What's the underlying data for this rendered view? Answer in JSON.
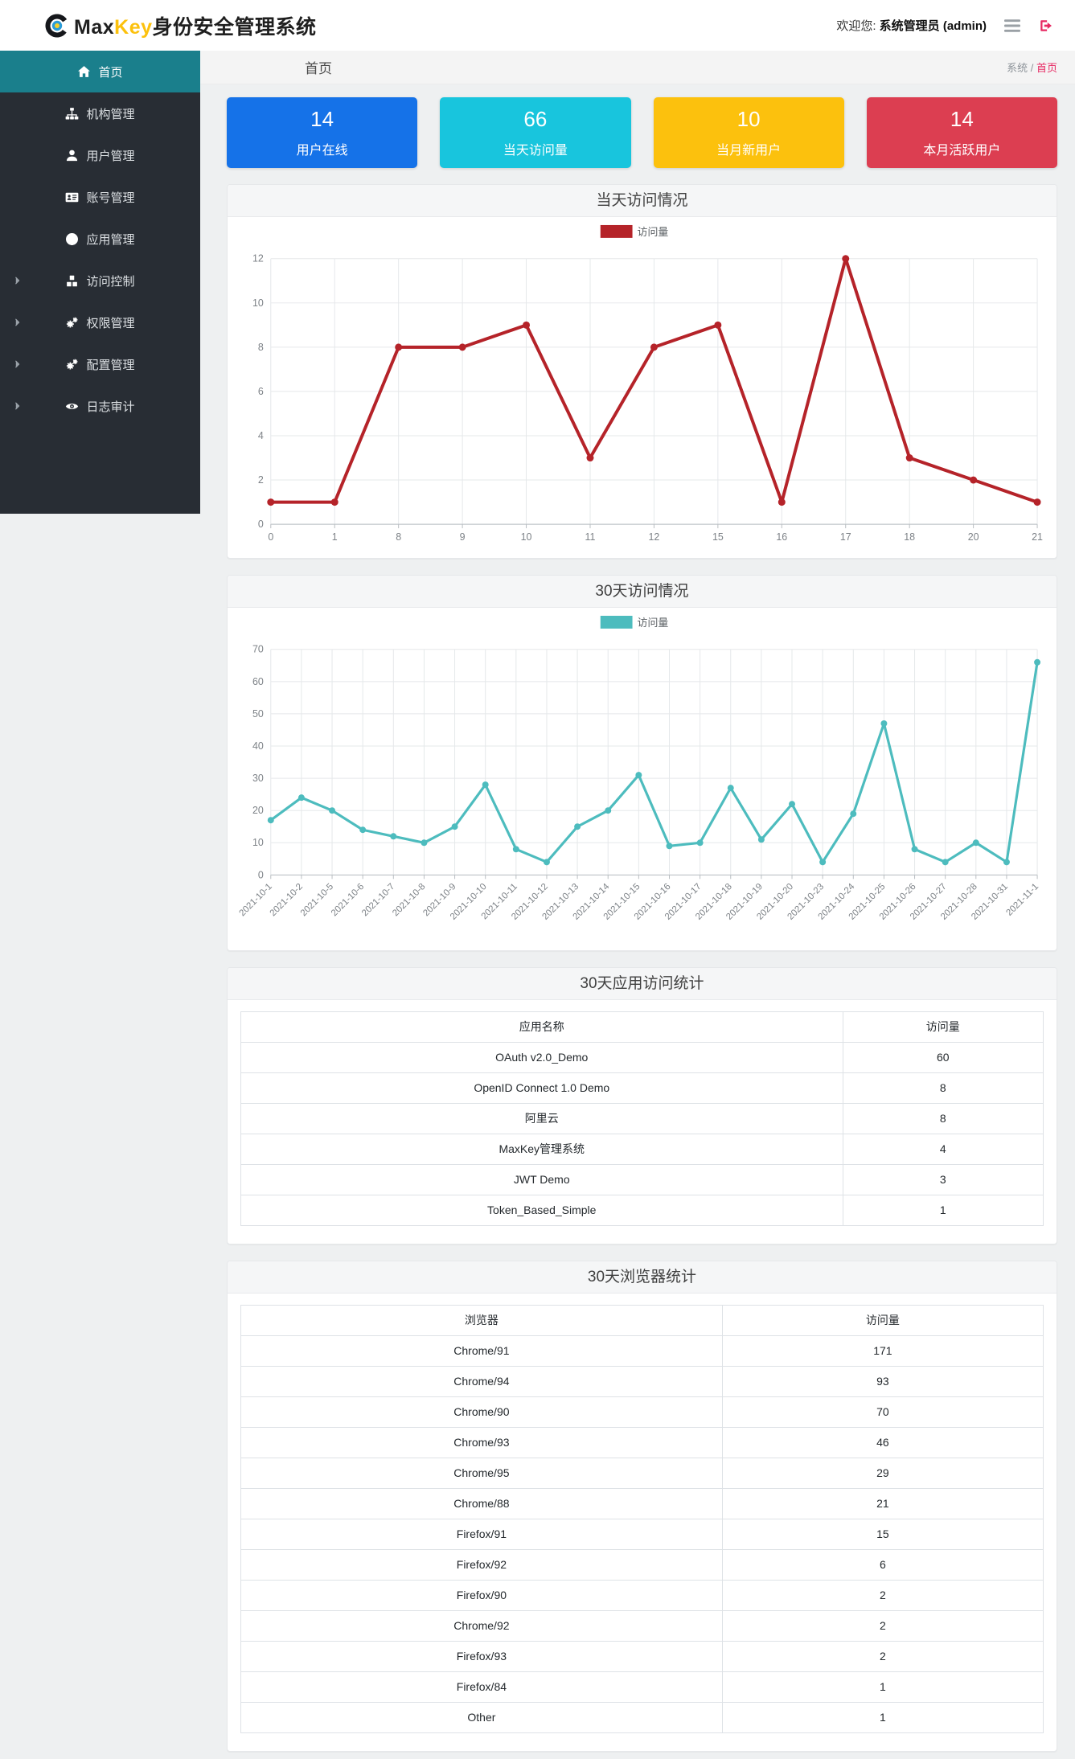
{
  "header": {
    "brand_max": "Max",
    "brand_key": "Key",
    "brand_suffix": "身份安全管理系统",
    "welcome_prefix": "欢迎您:",
    "welcome_user": "系统管理员 (admin)"
  },
  "sidebar": {
    "active_color": "#1a7f8c",
    "items": [
      {
        "id": "home",
        "label": "首页",
        "icon": "home-icon",
        "active": true,
        "expandable": false
      },
      {
        "id": "org",
        "label": "机构管理",
        "icon": "sitemap-icon",
        "active": false,
        "expandable": false
      },
      {
        "id": "users",
        "label": "用户管理",
        "icon": "user-icon",
        "active": false,
        "expandable": false
      },
      {
        "id": "accounts",
        "label": "账号管理",
        "icon": "id-card-icon",
        "active": false,
        "expandable": false
      },
      {
        "id": "apps",
        "label": "应用管理",
        "icon": "globe-icon",
        "active": false,
        "expandable": false
      },
      {
        "id": "access-control",
        "label": "访问控制",
        "icon": "cubes-icon",
        "active": false,
        "expandable": true
      },
      {
        "id": "permissions",
        "label": "权限管理",
        "icon": "cogs-icon",
        "active": false,
        "expandable": true
      },
      {
        "id": "config",
        "label": "配置管理",
        "icon": "cogs-icon",
        "active": false,
        "expandable": true
      },
      {
        "id": "audit",
        "label": "日志审计",
        "icon": "eye-icon",
        "active": false,
        "expandable": true
      }
    ]
  },
  "breadcrumb": {
    "title": "首页",
    "root": "系统",
    "separator": "/",
    "current": "首页",
    "current_color": "#e72862"
  },
  "stat_cards": [
    {
      "value": "14",
      "label": "用户在线",
      "color": "#1572e8"
    },
    {
      "value": "66",
      "label": "当天访问量",
      "color": "#18c5dd"
    },
    {
      "value": "10",
      "label": "当月新用户",
      "color": "#fcc10d"
    },
    {
      "value": "14",
      "label": "本月活跃用户",
      "color": "#dc3e51"
    }
  ],
  "chart_data": [
    {
      "type": "line",
      "title": "当天访问情况",
      "legend": "访问量",
      "color": "#b52329",
      "categories": [
        "0",
        "1",
        "8",
        "9",
        "10",
        "11",
        "12",
        "15",
        "16",
        "17",
        "18",
        "20",
        "21"
      ],
      "values": [
        1,
        1,
        8,
        8,
        9,
        3,
        8,
        9,
        1,
        12,
        3,
        2,
        1
      ],
      "xlabel": "",
      "ylabel": "",
      "ylim": [
        0,
        12
      ],
      "ytick": 2,
      "grid": true,
      "legend_position": "top",
      "rotate_labels": false
    },
    {
      "type": "line",
      "title": "30天访问情况",
      "legend": "访问量",
      "color": "#4dbcbe",
      "categories": [
        "2021-10-1",
        "2021-10-2",
        "2021-10-5",
        "2021-10-6",
        "2021-10-7",
        "2021-10-8",
        "2021-10-9",
        "2021-10-10",
        "2021-10-11",
        "2021-10-12",
        "2021-10-13",
        "2021-10-14",
        "2021-10-15",
        "2021-10-16",
        "2021-10-17",
        "2021-10-18",
        "2021-10-19",
        "2021-10-20",
        "2021-10-23",
        "2021-10-24",
        "2021-10-25",
        "2021-10-26",
        "2021-10-27",
        "2021-10-28",
        "2021-10-31",
        "2021-11-1"
      ],
      "values": [
        17,
        24,
        20,
        14,
        12,
        10,
        15,
        28,
        8,
        4,
        15,
        20,
        31,
        9,
        10,
        27,
        11,
        22,
        4,
        19,
        47,
        8,
        4,
        10,
        4,
        66
      ],
      "xlabel": "",
      "ylabel": "",
      "ylim": [
        0,
        70
      ],
      "ytick": 10,
      "grid": true,
      "legend_position": "top",
      "rotate_labels": true
    }
  ],
  "tables": [
    {
      "title": "30天应用访问统计",
      "headers": [
        "应用名称",
        "访问量"
      ],
      "col_widths": [
        "75%",
        "25%"
      ],
      "rows": [
        [
          "OAuth v2.0_Demo",
          "60"
        ],
        [
          "OpenID Connect 1.0 Demo",
          "8"
        ],
        [
          "阿里云",
          "8"
        ],
        [
          "MaxKey管理系统",
          "4"
        ],
        [
          "JWT Demo",
          "3"
        ],
        [
          "Token_Based_Simple",
          "1"
        ]
      ]
    },
    {
      "title": "30天浏览器统计",
      "headers": [
        "浏览器",
        "访问量"
      ],
      "col_widths": [
        "60%",
        "40%"
      ],
      "rows": [
        [
          "Chrome/91",
          "171"
        ],
        [
          "Chrome/94",
          "93"
        ],
        [
          "Chrome/90",
          "70"
        ],
        [
          "Chrome/93",
          "46"
        ],
        [
          "Chrome/95",
          "29"
        ],
        [
          "Chrome/88",
          "21"
        ],
        [
          "Firefox/91",
          "15"
        ],
        [
          "Firefox/92",
          "6"
        ],
        [
          "Firefox/90",
          "2"
        ],
        [
          "Chrome/92",
          "2"
        ],
        [
          "Firefox/93",
          "2"
        ],
        [
          "Firefox/84",
          "1"
        ],
        [
          "Other",
          "1"
        ]
      ]
    }
  ]
}
